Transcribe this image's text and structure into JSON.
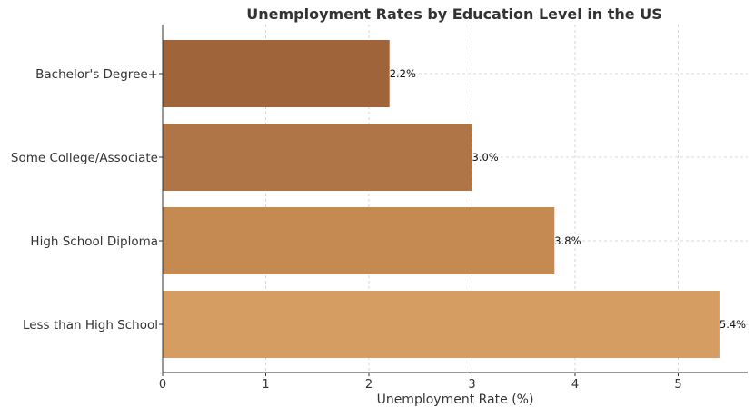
{
  "chart_data": {
    "type": "bar",
    "orientation": "horizontal",
    "title": "Unemployment Rates by Education Level in the US",
    "xlabel": "Unemployment Rate (%)",
    "ylabel": "",
    "categories": [
      "Less than High School",
      "High School Diploma",
      "Some College/Associate",
      "Bachelor's Degree+"
    ],
    "values": [
      5.4,
      3.8,
      3.0,
      2.2
    ],
    "value_labels": [
      "5.4%",
      "3.8%",
      "3.0%",
      "2.2%"
    ],
    "colors": [
      "#D59D61",
      "#C48A52",
      "#B07546",
      "#A0643A"
    ],
    "xlim": [
      0,
      5.67
    ],
    "xticks": [
      0,
      1,
      2,
      3,
      4,
      5
    ],
    "grid": true
  }
}
